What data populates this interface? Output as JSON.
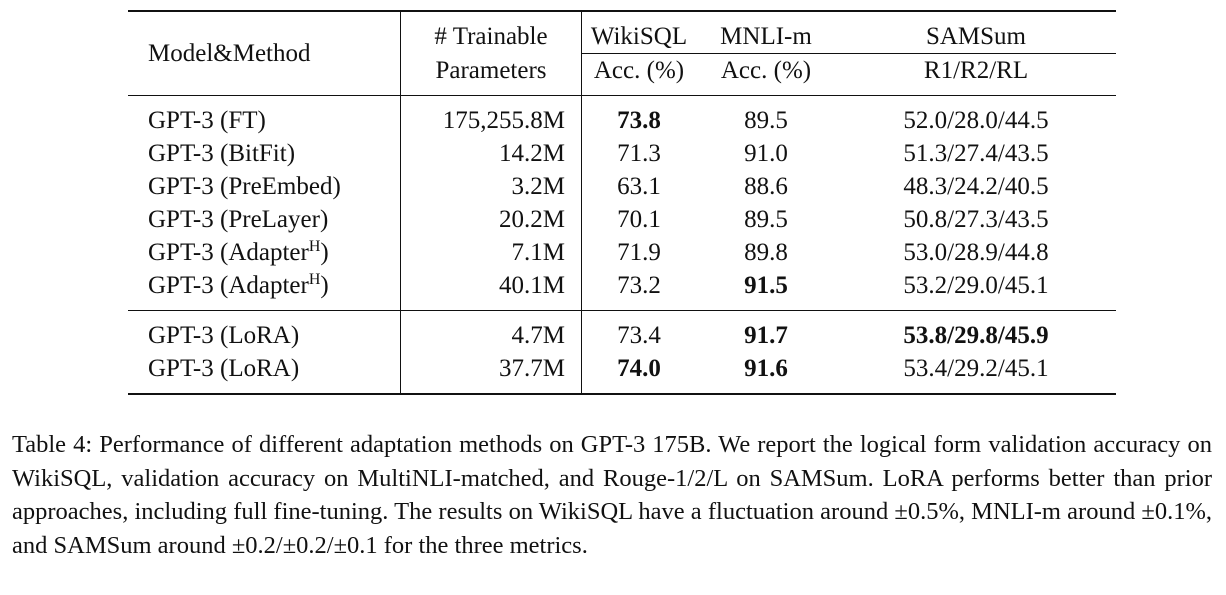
{
  "table": {
    "headers": {
      "model": "Model&Method",
      "params_line1": "# Trainable",
      "params_line2": "Parameters",
      "wikisql": "WikiSQL",
      "wikisql_metric": "Acc. (%)",
      "mnli": "MNLI-m",
      "mnli_metric": "Acc. (%)",
      "samsum": "SAMSum",
      "samsum_metric": "R1/R2/RL"
    },
    "rows_baselines": [
      {
        "model": "GPT-3 (FT)",
        "sup": "",
        "model_end": "",
        "params": "175,255.8M",
        "wikisql": "73.8",
        "wikisql_bold": true,
        "mnli": "89.5",
        "mnli_bold": false,
        "samsum": "52.0/28.0/44.5",
        "samsum_bold": false
      },
      {
        "model": "GPT-3 (BitFit)",
        "sup": "",
        "model_end": "",
        "params": "14.2M",
        "wikisql": "71.3",
        "wikisql_bold": false,
        "mnli": "91.0",
        "mnli_bold": false,
        "samsum": "51.3/27.4/43.5",
        "samsum_bold": false
      },
      {
        "model": "GPT-3 (PreEmbed)",
        "sup": "",
        "model_end": "",
        "params": "3.2M",
        "wikisql": "63.1",
        "wikisql_bold": false,
        "mnli": "88.6",
        "mnli_bold": false,
        "samsum": "48.3/24.2/40.5",
        "samsum_bold": false
      },
      {
        "model": "GPT-3 (PreLayer)",
        "sup": "",
        "model_end": "",
        "params": "20.2M",
        "wikisql": "70.1",
        "wikisql_bold": false,
        "mnli": "89.5",
        "mnli_bold": false,
        "samsum": "50.8/27.3/43.5",
        "samsum_bold": false
      },
      {
        "model": "GPT-3 (Adapter",
        "sup": "H",
        "model_end": ")",
        "params": "7.1M",
        "wikisql": "71.9",
        "wikisql_bold": false,
        "mnli": "89.8",
        "mnli_bold": false,
        "samsum": "53.0/28.9/44.8",
        "samsum_bold": false
      },
      {
        "model": "GPT-3 (Adapter",
        "sup": "H",
        "model_end": ")",
        "params": "40.1M",
        "wikisql": "73.2",
        "wikisql_bold": false,
        "mnli": "91.5",
        "mnli_bold": true,
        "samsum": "53.2/29.0/45.1",
        "samsum_bold": false
      }
    ],
    "rows_lora": [
      {
        "model": "GPT-3 (LoRA)",
        "sup": "",
        "model_end": "",
        "params": "4.7M",
        "wikisql": "73.4",
        "wikisql_bold": false,
        "mnli": "91.7",
        "mnli_bold": true,
        "samsum": "53.8/29.8/45.9",
        "samsum_bold": true
      },
      {
        "model": "GPT-3 (LoRA)",
        "sup": "",
        "model_end": "",
        "params": "37.7M",
        "wikisql": "74.0",
        "wikisql_bold": true,
        "mnli": "91.6",
        "mnli_bold": true,
        "samsum": "53.4/29.2/45.1",
        "samsum_bold": false
      }
    ]
  },
  "caption": "Table 4: Performance of different adaptation methods on GPT-3 175B. We report the logical form validation accuracy on WikiSQL, validation accuracy on MultiNLI-matched, and Rouge-1/2/L on SAMSum. LoRA performs better than prior approaches, including full fine-tuning. The results on WikiSQL have a fluctuation around ±0.5%, MNLI-m around ±0.1%, and SAMSum around ±0.2/±0.2/±0.1 for the three metrics."
}
